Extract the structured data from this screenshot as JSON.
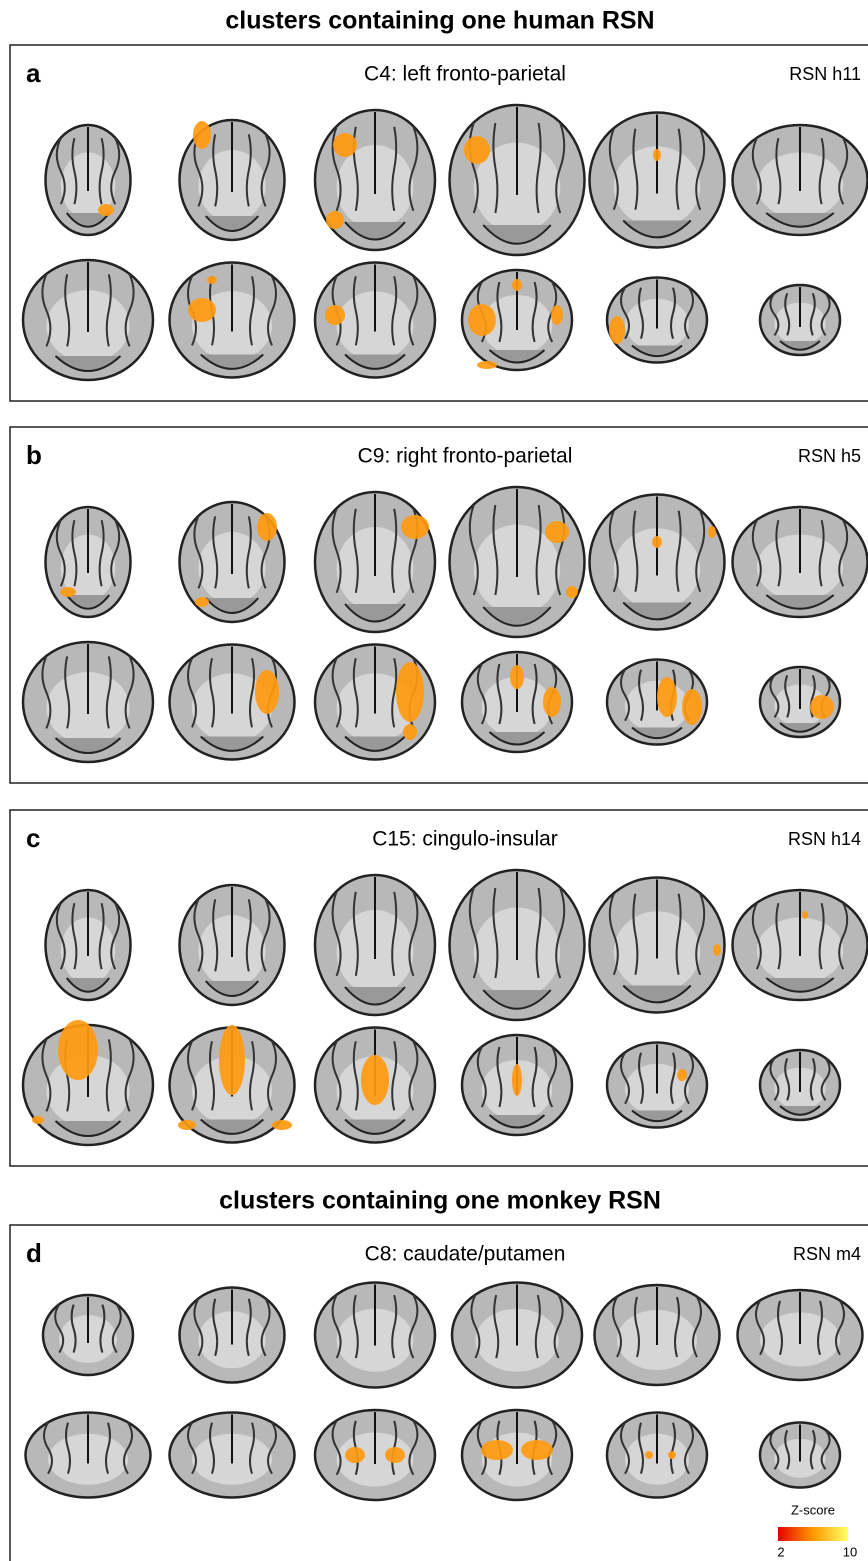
{
  "headings": [
    "clusters containing one human RSN",
    "clusters containing one monkey RSN"
  ],
  "panels": [
    {
      "letter": "a",
      "title": "C4: left fronto-parietal",
      "rsn": "RSN h11"
    },
    {
      "letter": "b",
      "title": "C9: right fronto-parietal",
      "rsn": "RSN h5"
    },
    {
      "letter": "c",
      "title": "C15: cingulo-insular",
      "rsn": "RSN h14"
    },
    {
      "letter": "d",
      "title": "C8: caudate/putamen",
      "rsn": "RSN m4"
    }
  ],
  "colorbar": {
    "label": "Z-score",
    "min": 2,
    "max": 10
  }
}
